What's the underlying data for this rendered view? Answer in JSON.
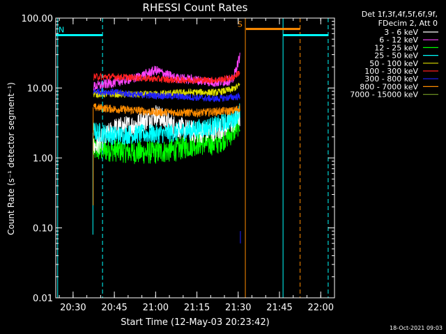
{
  "chart_data": {
    "type": "line",
    "title": "RHESSI Count Rates",
    "xlabel": "Start Time (12-May-03 20:23:42)",
    "ylabel": "Count Rate (s⁻¹ detector segment⁻¹)",
    "x_ticks": [
      "20:30",
      "20:45",
      "21:00",
      "21:15",
      "21:30",
      "21:45",
      "22:00"
    ],
    "x_tick_minutes": [
      30,
      45,
      60,
      75,
      90,
      105,
      120
    ],
    "xlim_minutes_after_2000": [
      23.7,
      125
    ],
    "y_scale": "log",
    "ylim": [
      0.01,
      100
    ],
    "y_ticks": [
      "100.00",
      "10.00",
      "1.00",
      "0.10",
      "0.01"
    ],
    "y_tick_values": [
      100,
      10,
      1,
      0.1,
      0.01
    ],
    "legend_header": [
      "Det 1f,3f,4f,5f,6f,9f,",
      "FDecim 2, Att 0"
    ],
    "legend_placement": "right",
    "series": [
      {
        "name": "3 - 6 keV",
        "color": "#ffffff",
        "profile": [
          [
            37.4,
            1.4
          ],
          [
            45,
            2.6
          ],
          [
            53,
            3.0
          ],
          [
            60,
            4.2
          ],
          [
            67,
            2.8
          ],
          [
            75,
            2.3
          ],
          [
            82,
            2.5
          ],
          [
            88,
            3.2
          ],
          [
            90.6,
            3.9
          ]
        ]
      },
      {
        "name": "6 - 12 keV",
        "color": "#ff44ff",
        "profile": [
          [
            37.4,
            10.5
          ],
          [
            45,
            12
          ],
          [
            53,
            14
          ],
          [
            60,
            18
          ],
          [
            67,
            14
          ],
          [
            75,
            13
          ],
          [
            82,
            12
          ],
          [
            88,
            13
          ],
          [
            90.6,
            28
          ]
        ]
      },
      {
        "name": "12 - 25 keV",
        "color": "#00ff00",
        "profile": [
          [
            37.4,
            1.3
          ],
          [
            45,
            1.3
          ],
          [
            53,
            1.2
          ],
          [
            60,
            1.2
          ],
          [
            67,
            1.3
          ],
          [
            75,
            1.6
          ],
          [
            82,
            1.6
          ],
          [
            88,
            2.3
          ],
          [
            90.6,
            3.2
          ]
        ]
      },
      {
        "name": "25 - 50 keV",
        "color": "#00ffff",
        "profile": [
          [
            37.4,
            2.4
          ],
          [
            45,
            2.1
          ],
          [
            53,
            2.2
          ],
          [
            60,
            2.2
          ],
          [
            67,
            2.3
          ],
          [
            75,
            2.6
          ],
          [
            82,
            2.9
          ],
          [
            88,
            3.6
          ],
          [
            90.6,
            4.6
          ]
        ]
      },
      {
        "name": "50 - 100 keV",
        "color": "#e0e000",
        "profile": [
          [
            37.4,
            8.2
          ],
          [
            45,
            8.2
          ],
          [
            53,
            8.0
          ],
          [
            60,
            8.2
          ],
          [
            67,
            8.5
          ],
          [
            75,
            8.7
          ],
          [
            82,
            8.6
          ],
          [
            88,
            9.6
          ],
          [
            90.6,
            11
          ]
        ]
      },
      {
        "name": "100 - 300 keV",
        "color": "#ff2020",
        "profile": [
          [
            37.4,
            14.5
          ],
          [
            45,
            14.5
          ],
          [
            53,
            14
          ],
          [
            60,
            13.5
          ],
          [
            67,
            13
          ],
          [
            75,
            13
          ],
          [
            82,
            13
          ],
          [
            88,
            14
          ],
          [
            90.6,
            17
          ]
        ]
      },
      {
        "name": "300 - 800 keV",
        "color": "#2020ff",
        "profile": [
          [
            37.4,
            9
          ],
          [
            45,
            8.7
          ],
          [
            53,
            8
          ],
          [
            60,
            7.8
          ],
          [
            67,
            7.6
          ],
          [
            75,
            7.3
          ],
          [
            82,
            7.0
          ],
          [
            88,
            7.4
          ],
          [
            90.6,
            7.6
          ]
        ]
      },
      {
        "name": "800 - 7000 keV",
        "color": "#ff8c00",
        "profile": [
          [
            37.4,
            5.3
          ],
          [
            45,
            5.0
          ],
          [
            53,
            4.8
          ],
          [
            60,
            4.5
          ],
          [
            67,
            4.5
          ],
          [
            75,
            4.4
          ],
          [
            82,
            4.6
          ],
          [
            88,
            4.7
          ],
          [
            90.6,
            5.2
          ]
        ]
      },
      {
        "name": "7000 - 15000 keV",
        "color": "#6b8e23",
        "profile": []
      }
    ],
    "noise_amplitude_log10": [
      0.16,
      0.07,
      0.17,
      0.14,
      0.05,
      0.05,
      0.05,
      0.06,
      0
    ],
    "markers": [
      {
        "label": "N",
        "color": "#00ffff",
        "level": 57,
        "span_minutes": [
          23.7,
          40.7
        ]
      },
      {
        "label": "",
        "color": "#00ffff",
        "level": 57,
        "span_minutes": [
          106.3,
          122.7
        ]
      },
      {
        "label": "S",
        "color": "#ff8c00",
        "level": 70,
        "span_minutes": [
          92.8,
          112.5
        ]
      }
    ],
    "solid_lines": [
      {
        "color": "#00ffff",
        "minute": 24.4
      },
      {
        "color": "#ff8c00",
        "minute": 92.6
      },
      {
        "color": "#00ffff",
        "minute": 106.3
      }
    ],
    "dashed_lines": [
      {
        "color": "#00ffff",
        "minute": 40.7
      },
      {
        "color": "#ff8c00",
        "minute": 112.5
      },
      {
        "color": "#00ffff",
        "minute": 122.7
      }
    ],
    "spikes": [
      {
        "color": "#00ffff",
        "minute": 37.2,
        "from": 0.08,
        "to": 2.3
      },
      {
        "color": "#ff8c00",
        "minute": 37.3,
        "from": 0.21,
        "to": 5.3
      },
      {
        "color": "#2020ff",
        "minute": 90.8,
        "from": 0.06,
        "to": 0.09
      }
    ],
    "timestamp": "18-Oct-2021 09:03"
  }
}
